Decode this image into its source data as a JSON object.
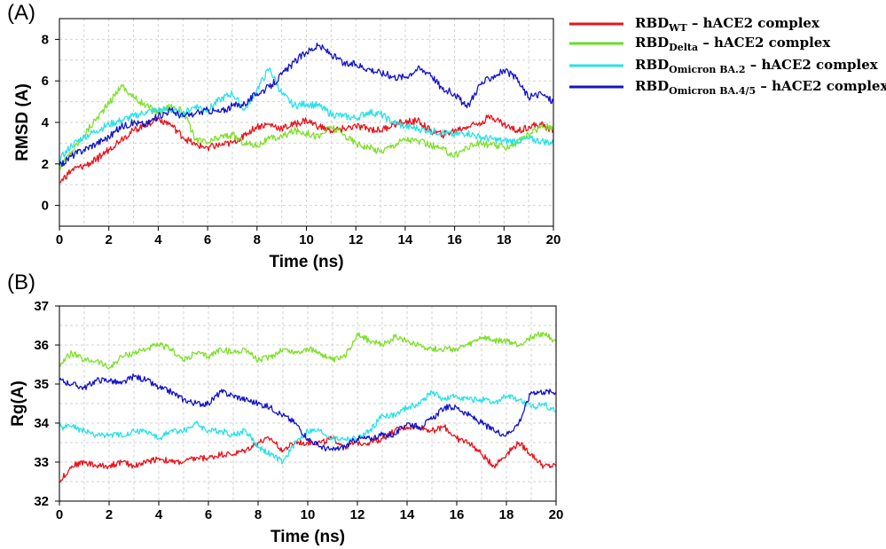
{
  "chart_data": [
    {
      "panel_label": "(A)",
      "type": "line",
      "xlabel": "Time (ns)",
      "ylabel": "RMSD (A)",
      "xlim": [
        0,
        20
      ],
      "ylim": [
        -1,
        9
      ],
      "xticks": [
        "0",
        "2",
        "4",
        "6",
        "8",
        "10",
        "12",
        "14",
        "16",
        "18",
        "20"
      ],
      "yticks": [
        "0",
        "2",
        "4",
        "6",
        "8"
      ],
      "grid": true,
      "legend": {
        "placement": "outside-right",
        "entries": [
          {
            "main": "RBD",
            "sub": "WT",
            "suffix": " – hACE2 complex",
            "color": "#e8141b"
          },
          {
            "main": "RBD",
            "sub": "Delta",
            "suffix": " – hACE2 complex",
            "color": "#66dd2b"
          },
          {
            "main": "RBD",
            "sub": "Omicron BA.2",
            "suffix": " – hACE2 complex",
            "color": "#28e2e8"
          },
          {
            "main": "RBD",
            "sub": "Omicron BA.4/5",
            "suffix": " – hACE2 complex",
            "color": "#1414c8"
          }
        ]
      },
      "series": [
        {
          "color": "#e8141b",
          "x": [
            0,
            0.5,
            1,
            1.5,
            2,
            2.5,
            3,
            3.5,
            4,
            4.5,
            5,
            5.5,
            6,
            6.5,
            7,
            7.5,
            8,
            8.5,
            9,
            9.5,
            10,
            10.5,
            11,
            11.5,
            12,
            12.5,
            13,
            13.5,
            14,
            14.5,
            15,
            15.5,
            16,
            16.5,
            17,
            17.5,
            18,
            18.5,
            19,
            19.5,
            20
          ],
          "y": [
            1.1,
            1.7,
            1.9,
            2.2,
            2.7,
            3.2,
            3.6,
            3.9,
            4.2,
            3.9,
            3.3,
            2.9,
            2.8,
            2.9,
            3.0,
            3.4,
            3.8,
            3.9,
            3.7,
            3.9,
            4.1,
            3.8,
            3.6,
            3.7,
            3.8,
            3.7,
            3.6,
            3.9,
            4.0,
            4.1,
            3.6,
            3.4,
            3.6,
            3.8,
            4.0,
            4.3,
            3.9,
            3.6,
            3.8,
            3.9,
            3.6
          ]
        },
        {
          "color": "#7ee02a",
          "x": [
            0,
            0.5,
            1,
            1.5,
            2,
            2.5,
            3,
            3.5,
            4,
            4.5,
            5,
            5.5,
            6,
            6.5,
            7,
            7.5,
            8,
            8.5,
            9,
            9.5,
            10,
            10.5,
            11,
            11.5,
            12,
            12.5,
            13,
            13.5,
            14,
            14.5,
            15,
            15.5,
            16,
            16.5,
            17,
            17.5,
            18,
            18.5,
            19,
            19.5,
            20
          ],
          "y": [
            1.8,
            2.6,
            3.4,
            4.2,
            4.9,
            5.8,
            5.2,
            4.8,
            4.5,
            4.8,
            4.5,
            3.2,
            3.0,
            3.3,
            3.4,
            3.0,
            2.9,
            3.2,
            3.3,
            3.6,
            3.5,
            3.3,
            3.8,
            3.4,
            3.0,
            2.8,
            2.6,
            2.9,
            3.2,
            3.1,
            2.9,
            2.7,
            2.4,
            2.8,
            3.0,
            2.9,
            2.8,
            3.0,
            3.4,
            3.8,
            3.8
          ]
        },
        {
          "color": "#28e2e8",
          "x": [
            0,
            0.5,
            1,
            1.5,
            2,
            2.5,
            3,
            3.5,
            4,
            4.5,
            5,
            5.5,
            6,
            6.5,
            7,
            7.5,
            8,
            8.5,
            9,
            9.5,
            10,
            10.5,
            11,
            11.5,
            12,
            12.5,
            13,
            13.5,
            14,
            14.5,
            15,
            15.5,
            16,
            16.5,
            17,
            17.5,
            18,
            18.5,
            19,
            19.5,
            20
          ],
          "y": [
            2.2,
            2.9,
            3.3,
            3.6,
            3.9,
            4.1,
            4.3,
            4.5,
            4.6,
            4.6,
            4.4,
            4.8,
            4.6,
            5.1,
            5.4,
            4.6,
            5.6,
            6.6,
            5.4,
            4.8,
            4.9,
            4.8,
            4.4,
            4.3,
            4.2,
            4.5,
            4.4,
            4.0,
            3.8,
            3.7,
            3.6,
            3.5,
            3.4,
            3.5,
            3.3,
            3.2,
            3.1,
            3.1,
            3.2,
            3.1,
            3.0
          ]
        },
        {
          "color": "#1414c8",
          "x": [
            0,
            0.5,
            1,
            1.5,
            2,
            2.5,
            3,
            3.5,
            4,
            4.5,
            5,
            5.5,
            6,
            6.5,
            7,
            7.5,
            8,
            8.5,
            9,
            9.5,
            10,
            10.5,
            11,
            11.5,
            12,
            12.5,
            13,
            13.5,
            14,
            14.5,
            15,
            15.5,
            16,
            16.5,
            17,
            17.5,
            18,
            18.5,
            19,
            19.5,
            20
          ],
          "y": [
            1.9,
            2.4,
            2.7,
            3.0,
            3.3,
            3.8,
            4.0,
            3.9,
            4.3,
            4.6,
            4.3,
            4.4,
            4.6,
            4.5,
            4.8,
            4.9,
            5.4,
            5.7,
            6.3,
            6.9,
            7.4,
            7.7,
            7.3,
            6.8,
            6.8,
            6.6,
            6.4,
            6.2,
            6.2,
            6.6,
            6.4,
            5.6,
            5.4,
            4.7,
            5.8,
            6.2,
            6.5,
            6.1,
            5.2,
            5.4,
            5.0
          ]
        }
      ]
    },
    {
      "panel_label": "(B)",
      "type": "line",
      "xlabel": "Time (ns)",
      "ylabel": "Rg(A)",
      "xlim": [
        0,
        20
      ],
      "ylim": [
        32,
        37
      ],
      "xticks": [
        "0",
        "2",
        "4",
        "6",
        "8",
        "10",
        "12",
        "14",
        "16",
        "18",
        "20"
      ],
      "yticks": [
        "32",
        "33",
        "34",
        "35",
        "36",
        "37"
      ],
      "grid": true,
      "series": [
        {
          "color": "#e8141b",
          "x": [
            0,
            0.5,
            1,
            1.5,
            2,
            2.5,
            3,
            3.5,
            4,
            4.5,
            5,
            5.5,
            6,
            6.5,
            7,
            7.5,
            8,
            8.5,
            9,
            9.5,
            10,
            10.5,
            11,
            11.5,
            12,
            12.5,
            13,
            13.5,
            14,
            14.5,
            15,
            15.5,
            16,
            16.5,
            17,
            17.5,
            18,
            18.5,
            19,
            19.5,
            20
          ],
          "y": [
            32.5,
            32.9,
            33.0,
            32.9,
            32.9,
            33.0,
            32.9,
            33.0,
            33.1,
            33.0,
            33.0,
            33.1,
            33.1,
            33.2,
            33.2,
            33.3,
            33.5,
            33.6,
            33.3,
            33.5,
            33.5,
            33.5,
            33.6,
            33.4,
            33.5,
            33.5,
            33.6,
            33.8,
            33.9,
            33.9,
            33.8,
            33.9,
            33.6,
            33.5,
            33.2,
            32.9,
            33.2,
            33.5,
            33.2,
            32.9,
            32.9
          ]
        },
        {
          "color": "#7ee02a",
          "x": [
            0,
            0.5,
            1,
            1.5,
            2,
            2.5,
            3,
            3.5,
            4,
            4.5,
            5,
            5.5,
            6,
            6.5,
            7,
            7.5,
            8,
            8.5,
            9,
            9.5,
            10,
            10.5,
            11,
            11.5,
            12,
            12.5,
            13,
            13.5,
            14,
            14.5,
            15,
            15.5,
            16,
            16.5,
            17,
            17.5,
            18,
            18.5,
            19,
            19.5,
            20
          ],
          "y": [
            35.5,
            35.8,
            35.6,
            35.6,
            35.4,
            35.7,
            35.8,
            35.9,
            36.0,
            35.9,
            35.6,
            35.8,
            35.7,
            35.9,
            35.8,
            35.9,
            35.6,
            35.7,
            35.9,
            35.8,
            35.9,
            35.8,
            35.6,
            35.7,
            36.3,
            36.1,
            36.0,
            36.2,
            36.1,
            36.0,
            35.9,
            35.9,
            35.9,
            36.0,
            36.2,
            36.1,
            36.1,
            36.0,
            36.2,
            36.3,
            36.1
          ]
        },
        {
          "color": "#28e2e8",
          "x": [
            0,
            0.5,
            1,
            1.5,
            2,
            2.5,
            3,
            3.5,
            4,
            4.5,
            5,
            5.5,
            6,
            6.5,
            7,
            7.5,
            8,
            8.5,
            9,
            9.5,
            10,
            10.5,
            11,
            11.5,
            12,
            12.5,
            13,
            13.5,
            14,
            14.5,
            15,
            15.5,
            16,
            16.5,
            17,
            17.5,
            18,
            18.5,
            19,
            19.5,
            20
          ],
          "y": [
            33.9,
            33.9,
            33.8,
            33.7,
            33.7,
            33.7,
            33.8,
            33.8,
            33.6,
            33.8,
            33.8,
            34.0,
            33.8,
            33.8,
            33.7,
            33.8,
            33.4,
            33.2,
            33.0,
            33.5,
            33.8,
            33.8,
            33.6,
            33.6,
            33.6,
            33.8,
            34.2,
            34.2,
            34.4,
            34.5,
            34.8,
            34.6,
            34.7,
            34.6,
            34.6,
            34.5,
            34.7,
            34.6,
            34.4,
            34.5,
            34.3
          ]
        },
        {
          "color": "#1414c8",
          "x": [
            0,
            0.5,
            1,
            1.5,
            2,
            2.5,
            3,
            3.5,
            4,
            4.5,
            5,
            5.5,
            6,
            6.5,
            7,
            7.5,
            8,
            8.5,
            9,
            9.5,
            10,
            10.5,
            11,
            11.5,
            12,
            12.5,
            13,
            13.5,
            14,
            14.5,
            15,
            15.5,
            16,
            16.5,
            17,
            17.5,
            18,
            18.5,
            19,
            19.5,
            20
          ],
          "y": [
            35.1,
            35.0,
            34.9,
            35.1,
            35.1,
            35.0,
            35.2,
            35.1,
            34.9,
            34.8,
            34.6,
            34.5,
            34.5,
            34.8,
            34.7,
            34.6,
            34.5,
            34.4,
            34.2,
            34.0,
            33.6,
            33.4,
            33.3,
            33.4,
            33.6,
            33.6,
            33.7,
            33.7,
            34.0,
            33.9,
            34.1,
            34.4,
            34.4,
            34.2,
            34.0,
            33.8,
            33.7,
            34.0,
            34.8,
            34.8,
            34.8
          ]
        }
      ]
    }
  ]
}
